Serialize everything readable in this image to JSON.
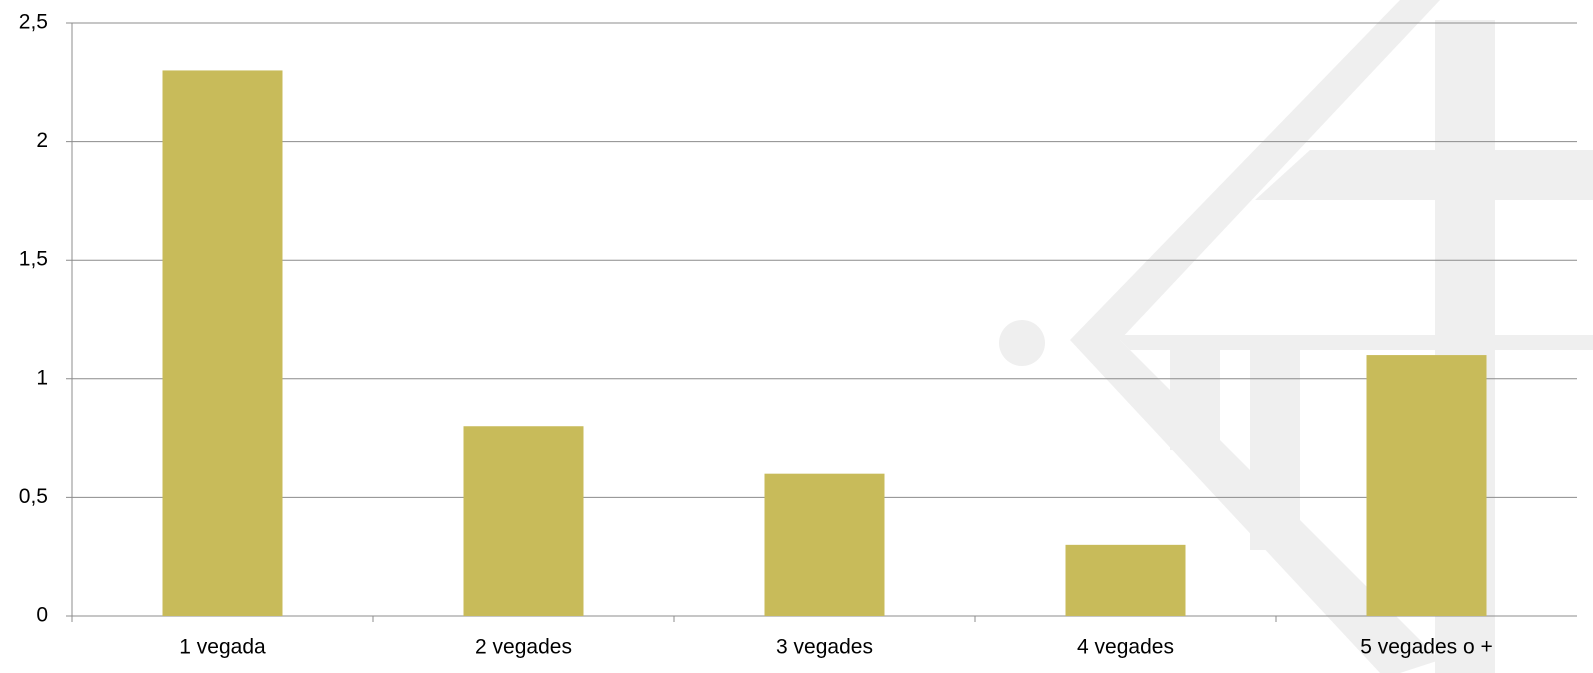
{
  "chart_data": {
    "type": "bar",
    "categories": [
      "1 vegada",
      "2 vegades",
      "3 vegades",
      "4 vegades",
      "5 vegades o +"
    ],
    "values": [
      2.3,
      0.8,
      0.6,
      0.3,
      1.1
    ],
    "color": "#c8bb5a",
    "ylim": [
      0,
      2.5
    ],
    "yticks": [
      0,
      {
        "value": 0.5,
        "label": "0,5"
      },
      1,
      {
        "value": 1.5,
        "label": "1,5"
      },
      2,
      {
        "value": 2.5,
        "label": "2,5"
      }
    ],
    "grid": true
  }
}
